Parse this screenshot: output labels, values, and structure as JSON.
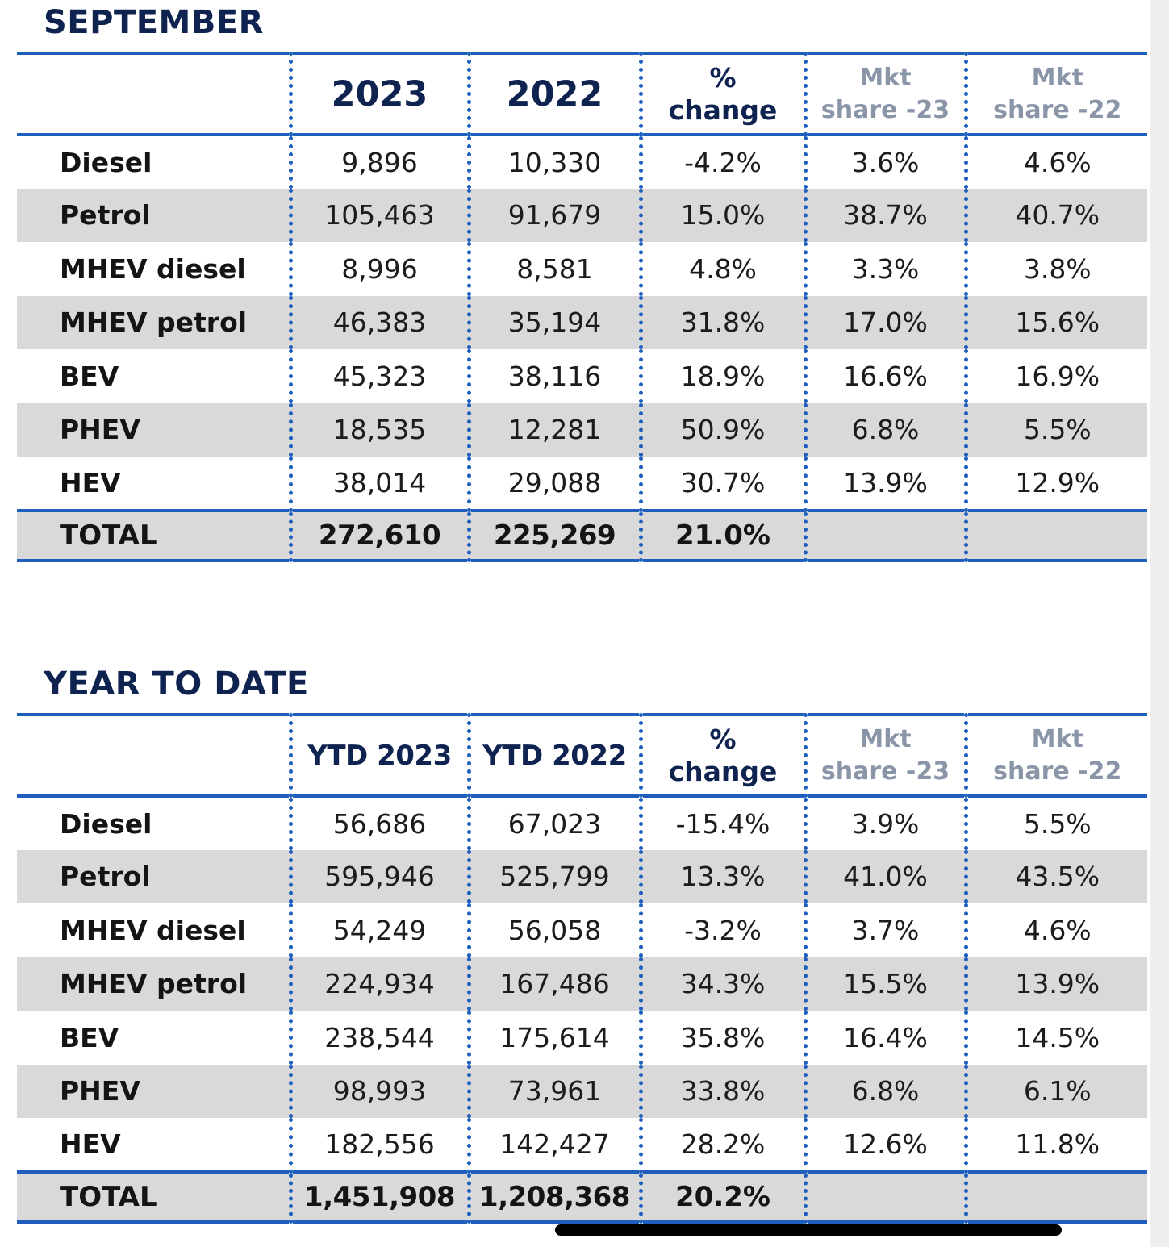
{
  "september": {
    "title": "SEPTEMBER",
    "headers": {
      "col1": "2023",
      "col2": "2022",
      "change_line1": "%",
      "change_line2": "change",
      "share23_line1": "Mkt",
      "share23_line2": "share -23",
      "share22_line1": "Mkt",
      "share22_line2": "share -22"
    },
    "rows": [
      {
        "label": "Diesel",
        "v2023": "9,896",
        "v2022": "10,330",
        "change": "-4.2%",
        "share23": "3.6%",
        "share22": "4.6%"
      },
      {
        "label": "Petrol",
        "v2023": "105,463",
        "v2022": "91,679",
        "change": "15.0%",
        "share23": "38.7%",
        "share22": "40.7%"
      },
      {
        "label": "MHEV diesel",
        "v2023": "8,996",
        "v2022": "8,581",
        "change": "4.8%",
        "share23": "3.3%",
        "share22": "3.8%"
      },
      {
        "label": "MHEV petrol",
        "v2023": "46,383",
        "v2022": "35,194",
        "change": "31.8%",
        "share23": "17.0%",
        "share22": "15.6%"
      },
      {
        "label": "BEV",
        "v2023": "45,323",
        "v2022": "38,116",
        "change": "18.9%",
        "share23": "16.6%",
        "share22": "16.9%"
      },
      {
        "label": "PHEV",
        "v2023": "18,535",
        "v2022": "12,281",
        "change": "50.9%",
        "share23": "6.8%",
        "share22": "5.5%"
      },
      {
        "label": "HEV",
        "v2023": "38,014",
        "v2022": "29,088",
        "change": "30.7%",
        "share23": "13.9%",
        "share22": "12.9%"
      }
    ],
    "total": {
      "label": "TOTAL",
      "v2023": "272,610",
      "v2022": "225,269",
      "change": "21.0%",
      "share23": "",
      "share22": ""
    }
  },
  "ytd": {
    "title": "YEAR TO DATE",
    "headers": {
      "col1": "YTD 2023",
      "col2": "YTD 2022",
      "change_line1": "%",
      "change_line2": "change",
      "share23_line1": "Mkt",
      "share23_line2": "share -23",
      "share22_line1": "Mkt",
      "share22_line2": "share -22"
    },
    "rows": [
      {
        "label": "Diesel",
        "v2023": "56,686",
        "v2022": "67,023",
        "change": "-15.4%",
        "share23": "3.9%",
        "share22": "5.5%"
      },
      {
        "label": "Petrol",
        "v2023": "595,946",
        "v2022": "525,799",
        "change": "13.3%",
        "share23": "41.0%",
        "share22": "43.5%"
      },
      {
        "label": "MHEV diesel",
        "v2023": "54,249",
        "v2022": "56,058",
        "change": "-3.2%",
        "share23": "3.7%",
        "share22": "4.6%"
      },
      {
        "label": "MHEV petrol",
        "v2023": "224,934",
        "v2022": "167,486",
        "change": "34.3%",
        "share23": "15.5%",
        "share22": "13.9%"
      },
      {
        "label": "BEV",
        "v2023": "238,544",
        "v2022": "175,614",
        "change": "35.8%",
        "share23": "16.4%",
        "share22": "14.5%"
      },
      {
        "label": "PHEV",
        "v2023": "98,993",
        "v2022": "73,961",
        "change": "33.8%",
        "share23": "6.8%",
        "share22": "6.1%"
      },
      {
        "label": "HEV",
        "v2023": "182,556",
        "v2022": "142,427",
        "change": "28.2%",
        "share23": "12.6%",
        "share22": "11.8%"
      }
    ],
    "total": {
      "label": "TOTAL",
      "v2023": "1,451,908",
      "v2022": "1,208,368",
      "change": "20.2%",
      "share23": "",
      "share22": ""
    }
  },
  "colors": {
    "rule_blue": "#1e5fbe",
    "title_navy": "#0f2350",
    "row_shade": "#d9d9da",
    "muted_header": "#8a95a8"
  }
}
